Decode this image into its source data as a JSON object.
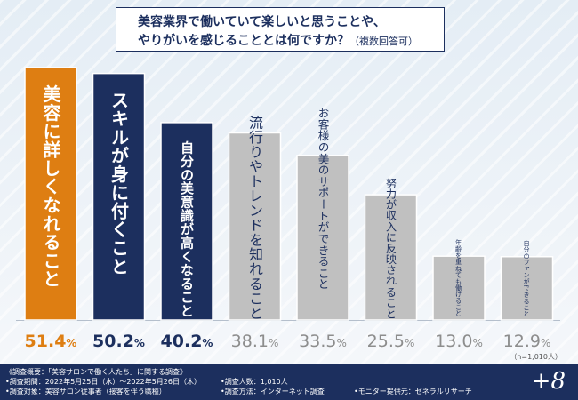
{
  "title": {
    "line1": "美容業界で働いていて楽しいと思うことや、",
    "line2": "やりがいを感じることとは何ですか？",
    "note": "（複数回答可）"
  },
  "chart_data": {
    "type": "bar",
    "title": "美容業界で働いていて楽しいと思うことや、やりがいを感じることとは何ですか？（複数回答可）",
    "categories": [
      "美容に詳しくなれること",
      "スキルが身に付くこと",
      "自分の美意識が高くなること",
      "流行りやトレンドを知れること",
      "お客様の美のサポートができること",
      "努力が収入に反映されること",
      "年齢を重ねても働けること",
      "自分のファンができること"
    ],
    "values": [
      51.4,
      50.2,
      40.2,
      38.1,
      33.5,
      25.5,
      13.0,
      12.9
    ],
    "value_labels": [
      "51.4%",
      "50.2%",
      "40.2%",
      "38.1%",
      "33.5%",
      "25.5%",
      "13.0%",
      "12.9%"
    ],
    "ylim": [
      0,
      60
    ],
    "sample_note": "（n=1,010人）",
    "colors": {
      "orange": "#de7e12",
      "navy": "#1c2f5e",
      "gray": "#c0c0c0",
      "label_gray": "#8d8d8d"
    }
  },
  "footer": {
    "overview": "《調査概要：「美容サロンで働く人たち」に関する調査》",
    "period": "•調査期間：2022年5月25日（水）〜2022年5月26日（木）",
    "target": "•調査対象：美容サロン従事者（接客を伴う職種）",
    "count": "•調査人数：1,010人",
    "method": "•調査方法：インターネット調査",
    "provider": "•モニター提供元：ゼネラルリサーチ",
    "brand": "+8"
  }
}
